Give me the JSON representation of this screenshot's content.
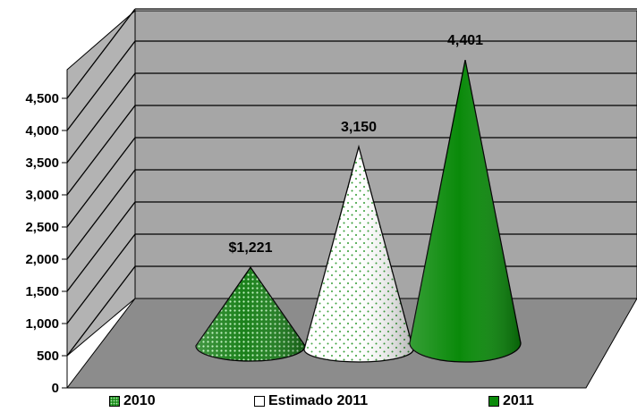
{
  "chart_data": {
    "type": "bar",
    "subtype": "3d-cone",
    "categories": [
      "2010",
      "Estimado 2011",
      "2011"
    ],
    "values": [
      1221,
      3150,
      4401
    ],
    "data_labels": [
      "$1,221",
      "3,150",
      "4,401"
    ],
    "ylim": [
      0,
      4500
    ],
    "yticks": [
      0,
      500,
      1000,
      1500,
      2000,
      2500,
      3000,
      3500,
      4000,
      4500
    ],
    "ytick_labels": [
      "0",
      "500",
      "1,000",
      "1,500",
      "2,000",
      "2,500",
      "3,000",
      "3,500",
      "4,000",
      "4,500"
    ],
    "grid": true,
    "legend_position": "bottom",
    "legend": [
      {
        "label": "2010",
        "color": "#1f8f1f",
        "pattern": "dotted"
      },
      {
        "label": "Estimado 2011",
        "color": "#ffffff",
        "pattern": "none"
      },
      {
        "label": "2011",
        "color": "#0a8a0a",
        "pattern": "solid"
      }
    ],
    "colors": {
      "back_wall": "#a6a6a6",
      "side_wall": "#b3b3b3",
      "floor": "#8c8c8c",
      "gridline": "#000000",
      "cone_2010": "#1f8f1f",
      "cone_estimado": "#ffffff",
      "cone_2011": "#0a8a0a"
    }
  }
}
